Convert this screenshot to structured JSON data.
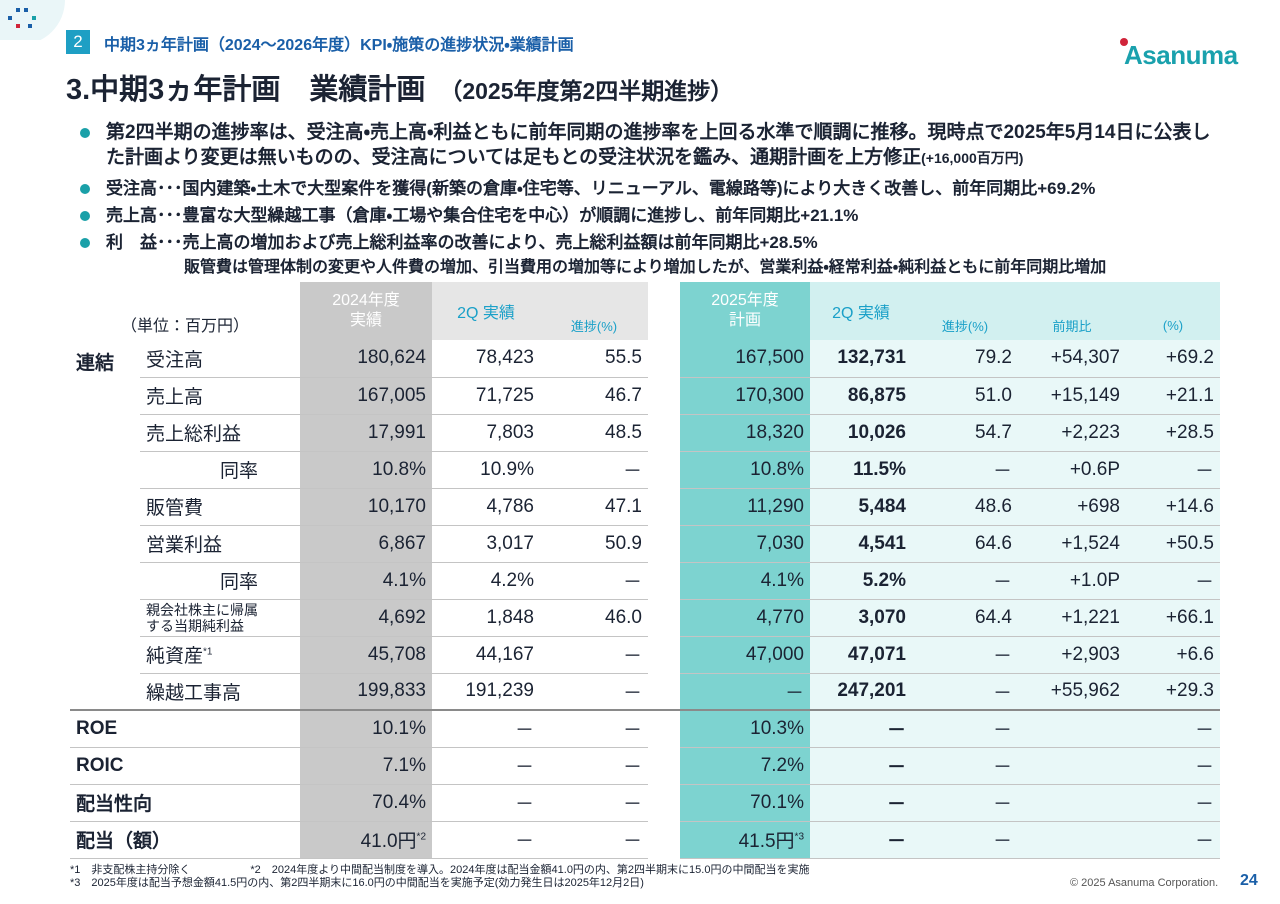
{
  "header": {
    "section_number": "2",
    "section_title": "中期3ヵ年計画（2024～2026年度）KPI・施策の進捗状況・業績計画",
    "logo": "Asanuma"
  },
  "title": {
    "main": "3.中期3ヵ年計画　業績計画",
    "sub": "（2025年度第2四半期進捗）"
  },
  "bullets": [
    {
      "text": "第2四半期の進捗率は、受注高・売上高・利益ともに前年同期の進捗率を上回る水準で順調に推移。現時点で2025年5月14日に公表した計画より変更は無いものの、受注高については足もとの受注状況を鑑み、通期計画を上方修正",
      "note": "(+16,000百万円)"
    },
    {
      "text": "受注高･･･国内建築・土木で大型案件を獲得(新築の倉庫・住宅等、リニューアル、電線路等)により大きく改善し、前年同期比+69.2%"
    },
    {
      "text": "売上高･･･豊富な大型繰越工事（倉庫・工場や集合住宅を中心）が順調に進捗し、前年同期比+21.1%"
    },
    {
      "text": "利　益･･･売上高の増加および売上総利益率の改善により、売上総利益額は前年同期比+28.5%",
      "cont": "販管費は管理体制の変更や人件費の増加、引当費用の増加等により増加したが、営業利益・経常利益・純利益ともに前年同期比増加"
    }
  ],
  "table": {
    "unit": "（単位：百万円）",
    "head": {
      "fy2024": "2024年度\n実績",
      "q2_2024": "2Q 実績",
      "progress_2024": "進捗(%)",
      "fy2025": "2025年度\n計画",
      "q2_2025": "2Q 実績",
      "progress_2025": "進捗(%)",
      "yoy": "前期比",
      "yoy_pct": "(%)"
    },
    "consolidated": {
      "label": "連結",
      "rows": [
        {
          "label": "受注高",
          "cells": [
            "180,624",
            "78,423",
            "55.5",
            "167,500",
            "132,731",
            "79.2",
            "+54,307",
            "+69.2"
          ]
        },
        {
          "label": "売上高",
          "cells": [
            "167,005",
            "71,725",
            "46.7",
            "170,300",
            "86,875",
            "51.0",
            "+15,149",
            "+21.1"
          ]
        },
        {
          "label": "売上総利益",
          "cells": [
            "17,991",
            "7,803",
            "48.5",
            "18,320",
            "10,026",
            "54.7",
            "+2,223",
            "+28.5"
          ]
        },
        {
          "label": "同率",
          "indent": true,
          "cells": [
            "10.8%",
            "10.9%",
            "－",
            "10.8%",
            "11.5%",
            "－",
            "+0.6P",
            "－"
          ]
        },
        {
          "label": "販管費",
          "cells": [
            "10,170",
            "4,786",
            "47.1",
            "11,290",
            "5,484",
            "48.6",
            "+698",
            "+14.6"
          ]
        },
        {
          "label": "営業利益",
          "cells": [
            "6,867",
            "3,017",
            "50.9",
            "7,030",
            "4,541",
            "64.6",
            "+1,524",
            "+50.5"
          ]
        },
        {
          "label": "同率",
          "indent": true,
          "cells": [
            "4.1%",
            "4.2%",
            "－",
            "4.1%",
            "5.2%",
            "－",
            "+1.0P",
            "－"
          ]
        },
        {
          "label": "親会社株主に帰属\nする当期純利益",
          "small": true,
          "cells": [
            "4,692",
            "1,848",
            "46.0",
            "4,770",
            "3,070",
            "64.4",
            "+1,221",
            "+66.1"
          ]
        },
        {
          "label": "純資産",
          "sup": "*1",
          "cells": [
            "45,708",
            "44,167",
            "－",
            "47,000",
            "47,071",
            "－",
            "+2,903",
            "+6.6"
          ]
        },
        {
          "label": "繰越工事高",
          "cells": [
            "199,833",
            "191,239",
            "－",
            "－",
            "247,201",
            "－",
            "+55,962",
            "+29.3"
          ]
        }
      ]
    },
    "other_rows": [
      {
        "label": "ROE",
        "cells": [
          "10.1%",
          "－",
          "－",
          "10.3%",
          "－",
          "－",
          null,
          "－"
        ]
      },
      {
        "label": "ROIC",
        "cells": [
          "7.1%",
          "－",
          "－",
          "7.2%",
          "－",
          "－",
          null,
          "－"
        ]
      },
      {
        "label": "配当性向",
        "cells": [
          "70.4%",
          "－",
          "－",
          "70.1%",
          "－",
          "－",
          null,
          "－"
        ]
      },
      {
        "label": "配当（額）",
        "cells": [
          {
            "text": "41.0円",
            "sup": "*2"
          },
          "－",
          "－",
          {
            "text": "41.5円",
            "sup": "*3"
          },
          "－",
          "－",
          null,
          "－"
        ]
      }
    ]
  },
  "footnotes": [
    "*1　非支配株主持分除く",
    "*2　2024年度より中間配当制度を導入。2024年度は配当金額41.0円の内、第2四半期末に15.0円の中間配当を実施",
    "*3　2025年度は配当予想金額41.5円の内、第2四半期末に16.0円の中間配当を実施予定(効力発生日は2025年12月2日)"
  ],
  "footer": {
    "copyright": "© 2025 Asanuma Corporation.",
    "page": "24"
  }
}
